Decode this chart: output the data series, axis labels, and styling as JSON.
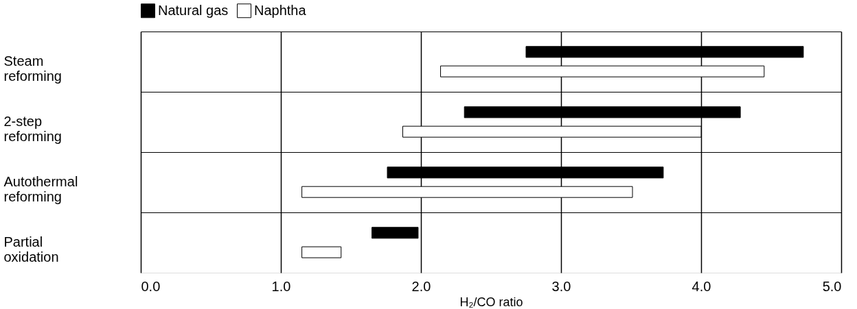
{
  "chart_data": {
    "type": "bar",
    "orientation": "horizontal",
    "xlabel": "H₂/CO ratio",
    "categories": [
      "Steam reforming",
      "2-step reforming",
      "Autothermal reforming",
      "Partial oxidation"
    ],
    "series": [
      {
        "name": "Natural gas",
        "color": "#000000",
        "base": [
          2.75,
          2.31,
          1.76,
          1.65
        ],
        "values": [
          1.98,
          1.97,
          1.97,
          0.33
        ]
      },
      {
        "name": "Naphtha",
        "color": "#ffffff",
        "base": [
          2.14,
          1.87,
          1.15,
          1.15
        ],
        "values": [
          2.31,
          2.13,
          2.36,
          0.28
        ]
      }
    ],
    "xlim": [
      0,
      5
    ],
    "xticks": [
      {
        "value": 0,
        "label": "0.0"
      },
      {
        "value": 1,
        "label": "1.0"
      },
      {
        "value": 2,
        "label": "2.0"
      },
      {
        "value": 3,
        "label": "3.0"
      },
      {
        "value": 4,
        "label": "4.0"
      },
      {
        "value": 5,
        "label": "5.0"
      }
    ],
    "grid": true,
    "legend": "top"
  }
}
